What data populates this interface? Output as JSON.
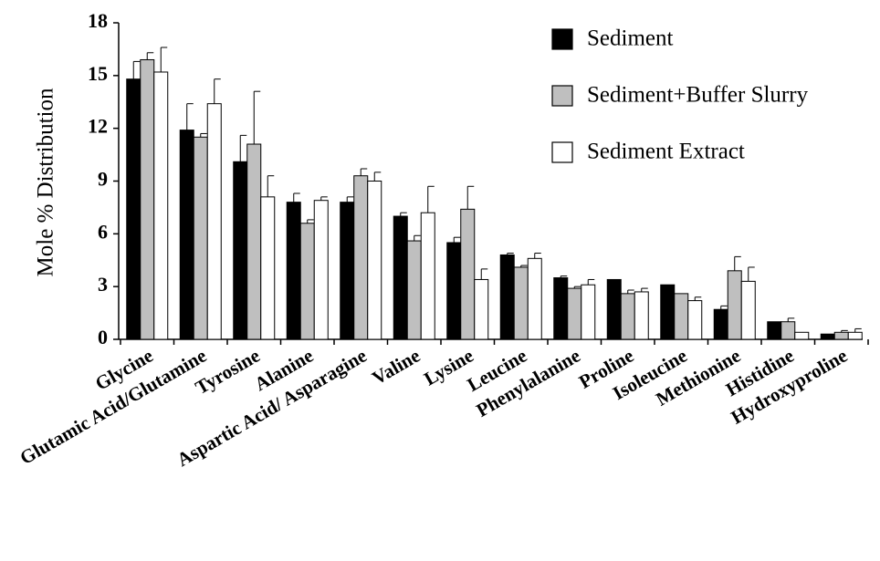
{
  "chart_data": {
    "type": "bar",
    "ylabel": "Mole % Distribution",
    "ylim": [
      0,
      18
    ],
    "yticks": [
      0,
      3,
      6,
      9,
      12,
      15,
      18
    ],
    "grid": false,
    "legend_position": "top-right",
    "categories": [
      "Glycine",
      "Glutamic Acid/Glutamine",
      "Tyrosine",
      "Alanine",
      "Aspartic Acid/ Asparagine",
      "Valine",
      "Lysine",
      "Leucine",
      "Phenylalanine",
      "Proline",
      "Isoleucine",
      "Methionine",
      "Histidine",
      "Hydroxyproline"
    ],
    "series": [
      {
        "name": "Sediment",
        "color": "#000000",
        "values": [
          14.8,
          11.9,
          10.1,
          7.8,
          7.8,
          7.0,
          5.5,
          4.8,
          3.5,
          3.4,
          3.1,
          1.7,
          1.0,
          0.3
        ],
        "errors": [
          1.0,
          1.5,
          1.5,
          0.5,
          0.3,
          0.2,
          0.3,
          0.1,
          0.1,
          0.0,
          0.0,
          0.2,
          0.0,
          0.0
        ]
      },
      {
        "name": "Sediment+Buffer Slurry",
        "color": "#bfbfbf",
        "values": [
          15.9,
          11.5,
          11.1,
          6.6,
          9.3,
          5.6,
          7.4,
          4.1,
          2.9,
          2.6,
          2.6,
          3.9,
          1.0,
          0.4
        ],
        "errors": [
          0.4,
          0.2,
          3.0,
          0.2,
          0.4,
          0.3,
          1.3,
          0.1,
          0.1,
          0.2,
          0.0,
          0.8,
          0.2,
          0.1
        ]
      },
      {
        "name": "Sediment Extract",
        "color": "#ffffff",
        "values": [
          15.2,
          13.4,
          8.1,
          7.9,
          9.0,
          7.2,
          3.4,
          4.6,
          3.1,
          2.7,
          2.2,
          3.3,
          0.4,
          0.4
        ],
        "errors": [
          1.4,
          1.4,
          1.2,
          0.2,
          0.5,
          1.5,
          0.6,
          0.3,
          0.3,
          0.2,
          0.2,
          0.8,
          0.0,
          0.2
        ]
      }
    ]
  }
}
